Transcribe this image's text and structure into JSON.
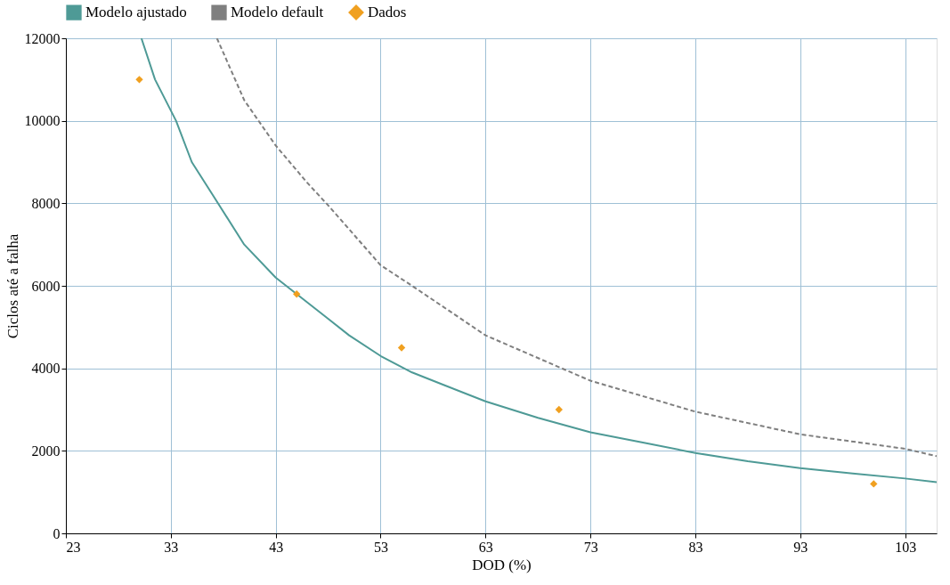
{
  "chart_data": {
    "type": "line",
    "xlabel": "DOD (%)",
    "ylabel": "Ciclos até a falha",
    "xlim": [
      23,
      106
    ],
    "xticks": [
      23,
      33,
      43,
      53,
      63,
      73,
      83,
      93,
      103
    ],
    "ylim": [
      0,
      12000
    ],
    "yticks": [
      0,
      2000,
      4000,
      6000,
      8000,
      10000,
      12000
    ],
    "grid": true,
    "legend": "top",
    "series": [
      {
        "name": "Modelo ajustado",
        "color": "#4e9a96",
        "line_style": "solid",
        "marker": "none",
        "x": [
          30.2,
          31.5,
          33.5,
          35,
          37,
          40,
          43,
          45,
          48,
          50,
          53,
          56,
          59,
          63,
          68,
          73,
          78,
          83,
          88,
          93,
          98,
          103,
          106
        ],
        "values": [
          12000,
          11000,
          10000,
          9000,
          8200,
          7000,
          6200,
          5800,
          5200,
          4800,
          4300,
          3900,
          3600,
          3200,
          2800,
          2450,
          2200,
          1950,
          1750,
          1580,
          1450,
          1330,
          1240
        ]
      },
      {
        "name": "Modelo default",
        "color": "#7f7f7f",
        "line_style": "dashed",
        "marker": "none",
        "x": [
          37.4,
          40,
          43,
          46,
          48,
          53,
          56,
          63,
          73,
          83,
          93,
          103,
          106
        ],
        "values": [
          12000,
          10500,
          9400,
          8500,
          7950,
          6500,
          6000,
          4800,
          3700,
          2950,
          2400,
          2050,
          1870
        ]
      },
      {
        "name": "Dados",
        "type": "scatter",
        "color": "#f0a020",
        "marker": "diamond",
        "x": [
          30,
          45,
          55,
          70,
          100
        ],
        "values": [
          11000,
          5800,
          4500,
          3000,
          1200
        ]
      }
    ]
  }
}
